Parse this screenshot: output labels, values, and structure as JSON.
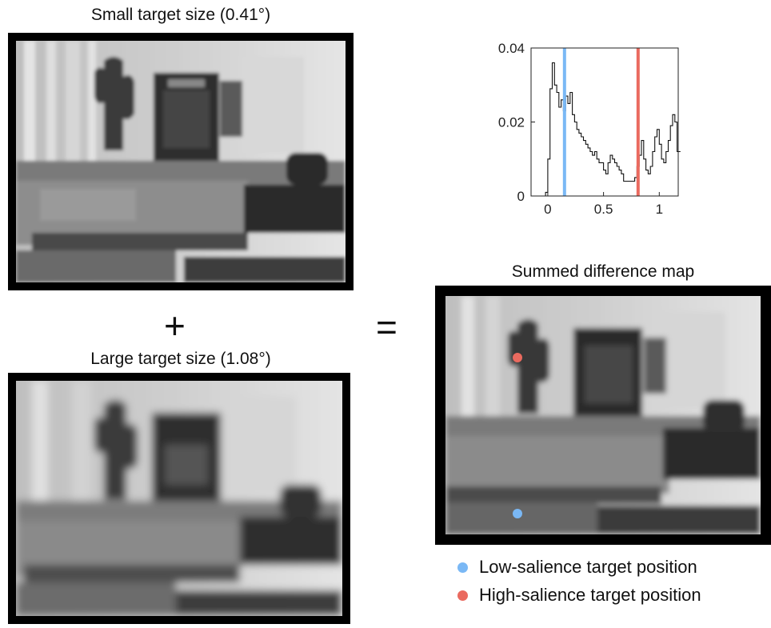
{
  "panels": {
    "small": {
      "title": "Small target size (0.41°)"
    },
    "large": {
      "title": "Large target size (1.08°)"
    },
    "summed": {
      "title": "Summed difference map"
    }
  },
  "operators": {
    "plus": "+",
    "equals": "="
  },
  "legend": {
    "low": {
      "label": "Low-salience target position",
      "color": "#7ab8f5"
    },
    "high": {
      "label": "High-salience target position",
      "color": "#ea6a5f"
    }
  },
  "chart_data": {
    "type": "line",
    "title": "",
    "xlabel": "",
    "ylabel": "",
    "xlim": [
      -0.15,
      1.17
    ],
    "ylim": [
      0,
      0.04
    ],
    "xticks": [
      0,
      0.5,
      1
    ],
    "xtick_labels": [
      "0",
      "0.5",
      "1"
    ],
    "yticks": [
      0,
      0.02,
      0.04
    ],
    "ytick_labels": [
      "0",
      "0.02",
      "0.04"
    ],
    "series": [
      {
        "style": "step",
        "color": "#111111",
        "x": [
          -0.05,
          -0.02,
          0.0,
          0.02,
          0.04,
          0.06,
          0.08,
          0.1,
          0.12,
          0.14,
          0.16,
          0.18,
          0.2,
          0.22,
          0.24,
          0.26,
          0.28,
          0.3,
          0.32,
          0.34,
          0.36,
          0.38,
          0.4,
          0.42,
          0.44,
          0.46,
          0.48,
          0.5,
          0.52,
          0.54,
          0.56,
          0.58,
          0.6,
          0.62,
          0.64,
          0.66,
          0.68,
          0.7,
          0.72,
          0.74,
          0.76,
          0.78,
          0.8,
          0.82,
          0.84,
          0.86,
          0.88,
          0.9,
          0.92,
          0.94,
          0.96,
          0.98,
          1.0,
          1.02,
          1.04,
          1.06,
          1.08,
          1.1,
          1.12,
          1.14,
          1.16
        ],
        "y": [
          0.0,
          0.001,
          0.01,
          0.029,
          0.036,
          0.03,
          0.028,
          0.024,
          0.026,
          0.023,
          0.027,
          0.025,
          0.028,
          0.022,
          0.02,
          0.018,
          0.017,
          0.016,
          0.015,
          0.014,
          0.013,
          0.012,
          0.011,
          0.012,
          0.01,
          0.009,
          0.009,
          0.007,
          0.006,
          0.009,
          0.011,
          0.01,
          0.009,
          0.008,
          0.007,
          0.006,
          0.004,
          0.004,
          0.004,
          0.004,
          0.004,
          0.005,
          0.008,
          0.011,
          0.015,
          0.01,
          0.007,
          0.006,
          0.008,
          0.012,
          0.016,
          0.018,
          0.014,
          0.01,
          0.009,
          0.012,
          0.015,
          0.019,
          0.022,
          0.02,
          0.012
        ]
      }
    ],
    "vlines": [
      {
        "label": "Low-salience target position",
        "x": 0.15,
        "color": "#7ab8f5"
      },
      {
        "label": "High-salience target position",
        "x": 0.81,
        "color": "#ea6a5f"
      }
    ]
  }
}
